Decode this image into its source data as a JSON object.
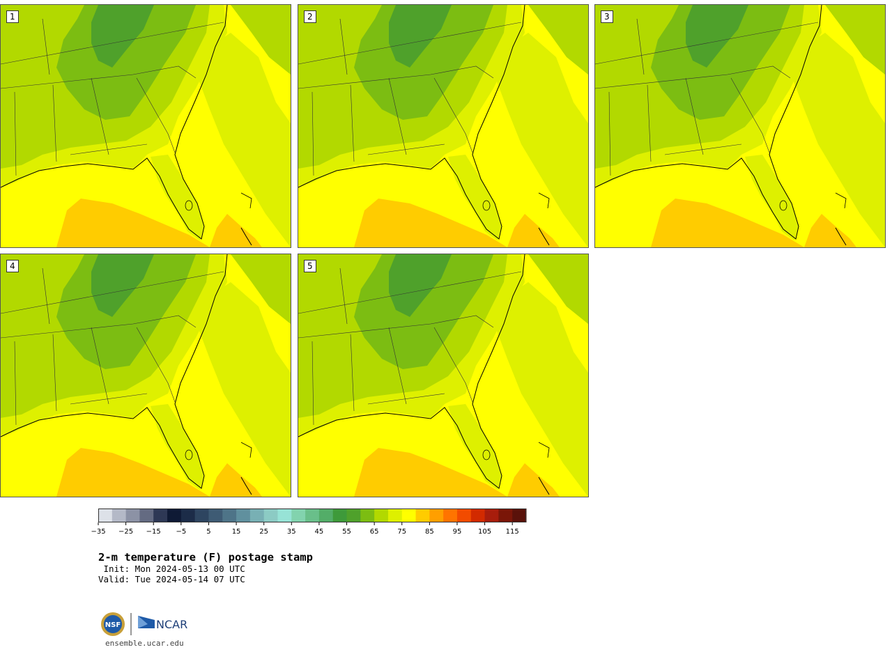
{
  "panels": [
    {
      "label": "1"
    },
    {
      "label": "2"
    },
    {
      "label": "3"
    },
    {
      "label": "4"
    },
    {
      "label": "5"
    }
  ],
  "colorbar": {
    "ticks": [
      "−35",
      "−25",
      "−15",
      "−5",
      "5",
      "15",
      "25",
      "35",
      "45",
      "55",
      "65",
      "75",
      "85",
      "95",
      "105",
      "115"
    ],
    "colors": [
      "#dde1e8",
      "#b4b9c7",
      "#8c92a5",
      "#646b82",
      "#2e3855",
      "#0f1a35",
      "#1c2c48",
      "#2e4560",
      "#3e5b74",
      "#4e7488",
      "#60909e",
      "#78b0b4",
      "#8ccbc4",
      "#97e3d6",
      "#82d3ae",
      "#69bf8a",
      "#53ad68",
      "#3e9a3a",
      "#4fa12b",
      "#7cbd12",
      "#b2d900",
      "#def000",
      "#ffff00",
      "#ffcc00",
      "#ff9f00",
      "#ff7400",
      "#f24b00",
      "#d22a00",
      "#a81d0c",
      "#7a1608",
      "#5a120a"
    ]
  },
  "text": {
    "title": "2-m temperature (F) postage stamp",
    "init": " Init: Mon 2024-05-13 00 UTC",
    "valid": "Valid: Tue 2024-05-14 07 UTC",
    "site": "ensemble.ucar.edu",
    "nsf": "NSF",
    "ncar": "NCAR"
  }
}
